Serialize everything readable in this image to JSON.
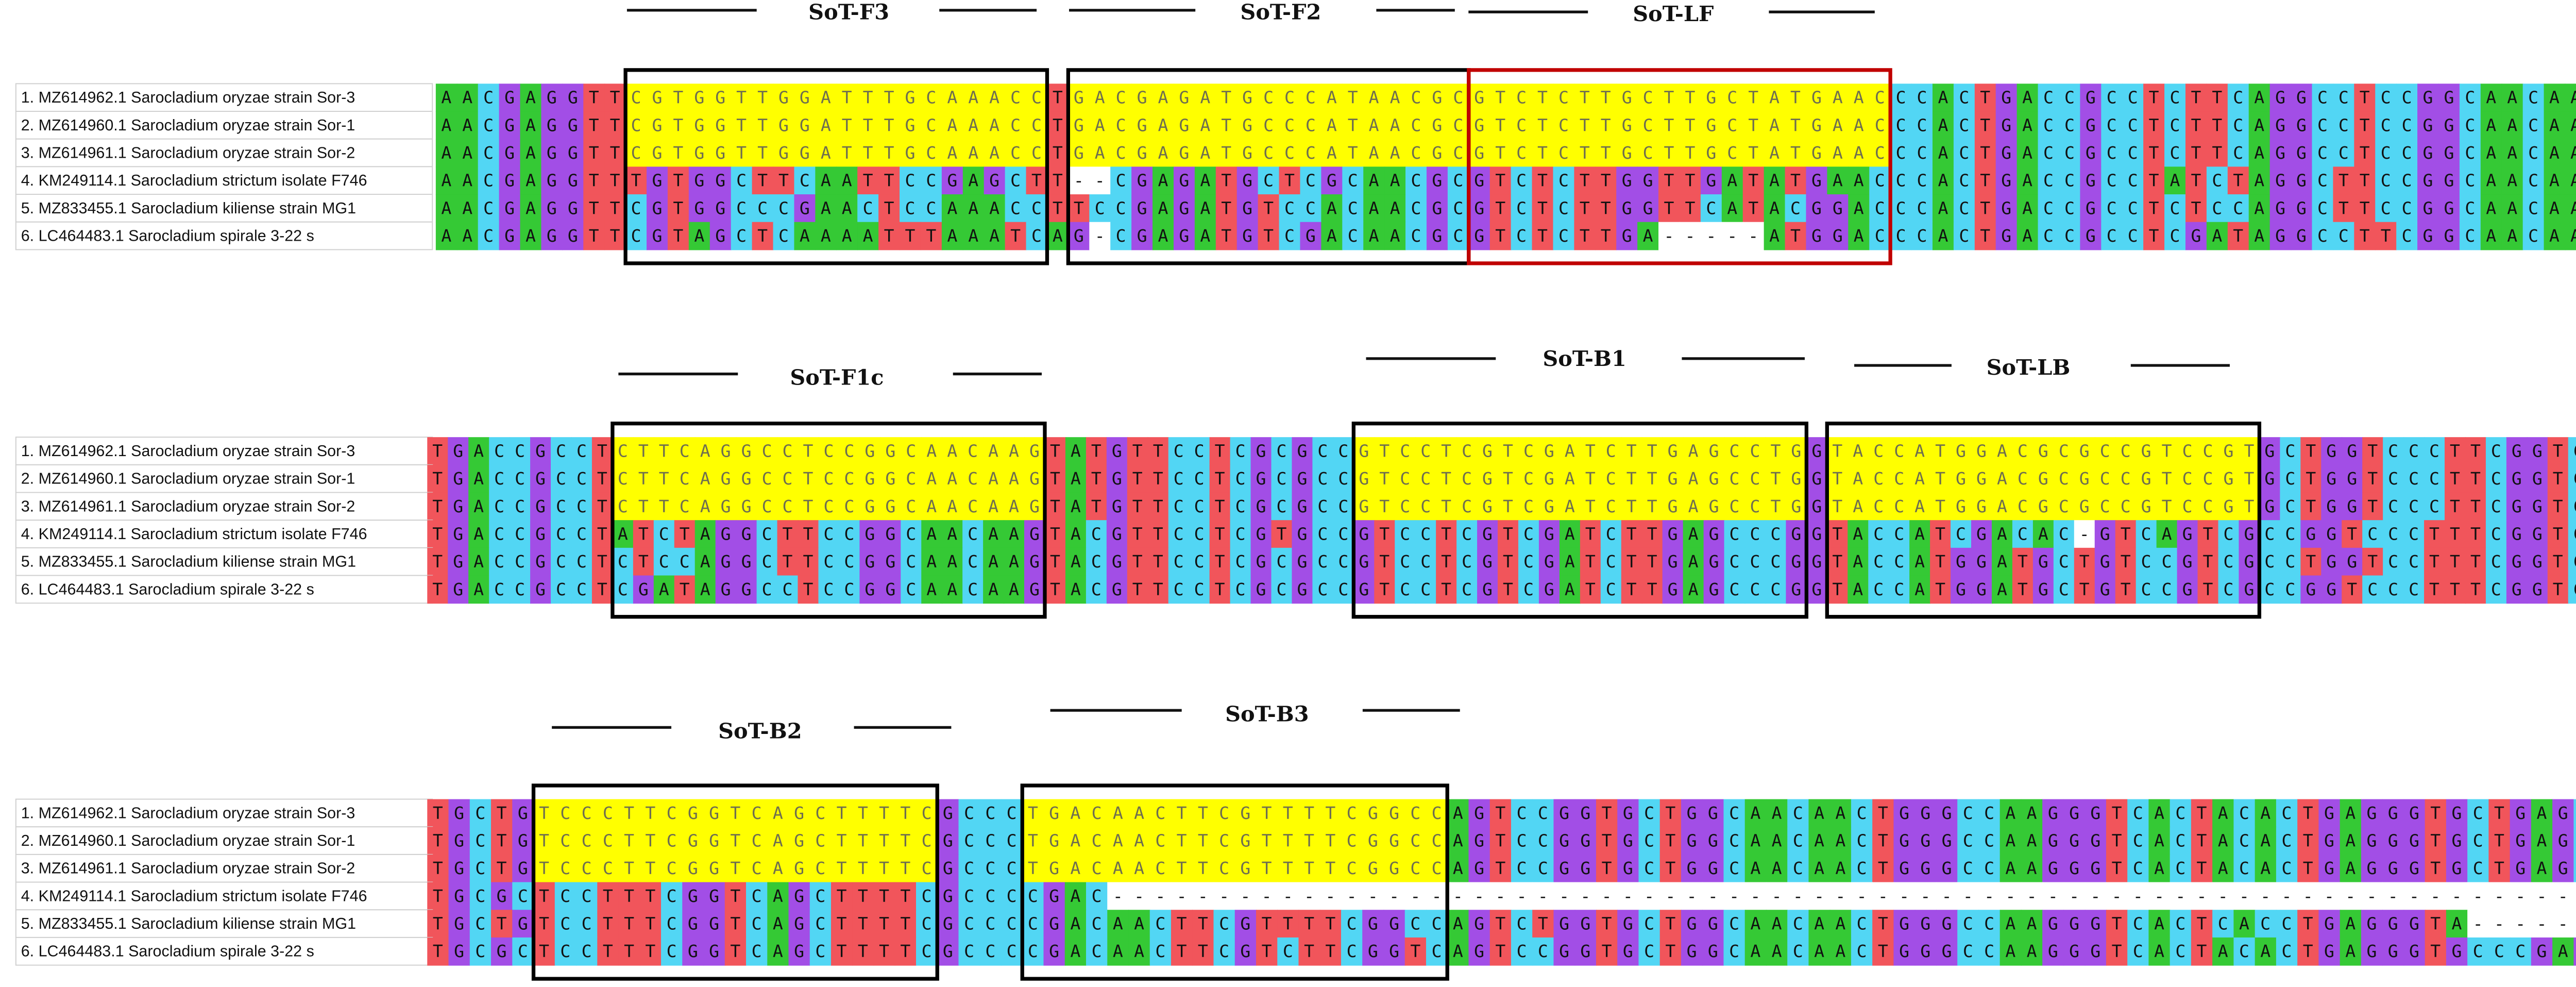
{
  "blocks": [
    {
      "primers": [
        "SoT-F3",
        "SoT-F2",
        "SoT-LF"
      ],
      "rows": [
        {
          "name": "1. MZ614962.1 Sarocladium oryzae strain Sor-3",
          "sequence": "AACGAGGTTCGTGGTTGGATTTGCAAACCTGACGAGATGCCCATAACGCGTCTCTTGCTTGCTATGAACCCACTGACCGCCTCTTCAGGCCTCCGGCAACAAGTAT"
        },
        {
          "name": "2. MZ614960.1 Sarocladium oryzae strain Sor-1",
          "sequence": "AACGAGGTTCGTGGTTGGATTTGCAAACCTGACGAGATGCCCATAACGCGTCTCTTGCTTGCTATGAACCCACTGACCGCCTCTTCAGGCCTCCGGCAACAAGTAT"
        },
        {
          "name": "3. MZ614961.1 Sarocladium oryzae strain Sor-2",
          "sequence": "AACGAGGTTCGTGGTTGGATTTGCAAACCTGACGAGATGCCCATAACGCGTCTCTTGCTTGCTATGAACCCACTGACCGCCTCTTCAGGCCTCCGGCAACAAGTAT"
        },
        {
          "name": "4. KM249114.1 Sarocladium strictum isolate F746",
          "sequence": "AACGAGGTTTGTGGCTTCAATTCCGAGCTT--CGAGATGCTCGCAACGCGTCTCTTGGTTGATATGAACCCACTGACCGCCTATCTAGGCTTCCGGCAACAAGTAC"
        },
        {
          "name": "5. MZ833455.1 Sarocladium kiliense strain MG1",
          "sequence": "AACGAGGTTCGTGGCCCGAACTCCAAACCTTCCGAGATGTCCACAACGCGTCTCTTGGTTCATACGGACCCACTGACCGCCTCTCCAGGCTTCCGGCAACAAGTAC"
        },
        {
          "name": "6. LC464483.1 Sarocladium spirale 3-22 s",
          "sequence": "AACGAGGTTCGTAGCTCAAAATTTAAATCAG-CGAGATGTCGACAACGCGTCTCTTGA-----ATGGACCCACTGACCGCCTCGATAGGCCTTCGGCAACAAGTAC"
        }
      ]
    },
    {
      "primers": [
        "SoT-F1c",
        "SoT-B1",
        "SoT-LB"
      ],
      "rows": [
        {
          "name": "1. MZ614962.1 Sarocladium oryzae strain Sor-3",
          "sequence": "TGACCGCCTCTTCAGGCCTCCGGCAACAAGTATGTTCCTCGCGCCGTCCTCGTCGATCTTGAGCCTGGTACCATGGACGCGCCGTCCGTGCTGGTCCCTTCGGTCAGCT"
        },
        {
          "name": "2. MZ614960.1 Sarocladium oryzae strain Sor-1",
          "sequence": "TGACCGCCTCTTCAGGCCTCCGGCAACAAGTATGTTCCTCGCGCCGTCCTCGTCGATCTTGAGCCTGGTACCATGGACGCGCCGTCCGTGCTGGTCCCTTCGGTCAGCT"
        },
        {
          "name": "3. MZ614961.1 Sarocladium oryzae strain Sor-2",
          "sequence": "TGACCGCCTCTTCAGGCCTCCGGCAACAAGTATGTTCCTCGCGCCGTCCTCGTCGATCTTGAGCCTGGTACCATGGACGCGCCGTCCGTGCTGGTCCCTTCGGTCAGCT"
        },
        {
          "name": "4. KM249114.1 Sarocladium strictum isolate F746",
          "sequence": "TGACCGCCTATCTAGGCTTCCGGCAACAAGTACGTTCCTCGTGCCGTCCTCGTCGATCTTGAGCCCGGTACCATCGACAC-GTCAGTCGCCGGTCCCTTTCGGTCAGCT"
        },
        {
          "name": "5. MZ833455.1 Sarocladium kiliense strain MG1",
          "sequence": "TGACCGCCTCTCCAGGCTTCCGGCAACAAGTACGTTCCTCGCGCCGTCCTCGTCGATCTTGAGCCCGGTACCATGGATGCTGTCCGTCGCCTGGTCCTTTCGGTCAGCT"
        },
        {
          "name": "6. LC464483.1 Sarocladium spirale 3-22 s",
          "sequence": "TGACCGCCTCGATAGGCCTCCGGCAACAAGTACGTTCCTCGCGCCGTCCTCGTCGATCTTGAGCCCGGTACCATGGATGCTGTCCGTCGCCGGTCCCTTTCGGTCAGCT"
        }
      ]
    },
    {
      "primers": [
        "SoT-B2",
        "SoT-B3"
      ],
      "rows": [
        {
          "name": "1. MZ614962.1 Sarocladium oryzae strain Sor-3",
          "sequence": "TGCTGTCCCTTCGGTCAGCTTTTCGCCCTGACAACTTCGTTTTCGGCCAGTCCGGTGCTGGCAACAACTGGGCCAAGGGTCACTACACTGAGGGTGCTGAGCTCG"
        },
        {
          "name": "2. MZ614960.1 Sarocladium oryzae strain Sor-1",
          "sequence": "TGCTGTCCCTTCGGTCAGCTTTTCGCCCTGACAACTTCGTTTTCGGCCAGTCCGGTGCTGGCAACAACTGGGCCAAGGGTCACTACACTGAGGGTGCTGAGCTCG"
        },
        {
          "name": "3. MZ614961.1 Sarocladium oryzae strain Sor-2",
          "sequence": "TGCTGTCCCTTCGGTCAGCTTTTCGCCCTGACAACTTCGTTTTCGGCCAGTCCGGTGCTGGCAACAACTGGGCCAAGGGTCACTACACTGAGGGTGCTGAGCTCG"
        },
        {
          "name": "4. KM249114.1 Sarocladium strictum isolate F746",
          "sequence": "TGCGCTCCTTTCGGTCAGCTTTTCGCCCCGAC-------------------------------------------------------------------------"
        },
        {
          "name": "5. MZ833455.1 Sarocladium kiliense strain MG1",
          "sequence": "TGCTGTCCTTTCGGTCAGCTTTTCGCCCCGACAACTTCGTTTTCGGCCAGTCTGGTGCTGGCAACAACTGGGCCAAGGGTCACTCACCTGAGGGTA---------"
        },
        {
          "name": "6. LC464483.1 Sarocladium spirale 3-22 s",
          "sequence": "TGCGCTCCTTTCGGTCAGCTTTTCGCCCCGACAACTTCGTCTTCGGTCAGTCCGGTGCTGGCAACAACTGGGCCAAGGGTCACTACACTGAGGGTGCCCGAGCTT"
        }
      ]
    }
  ]
}
